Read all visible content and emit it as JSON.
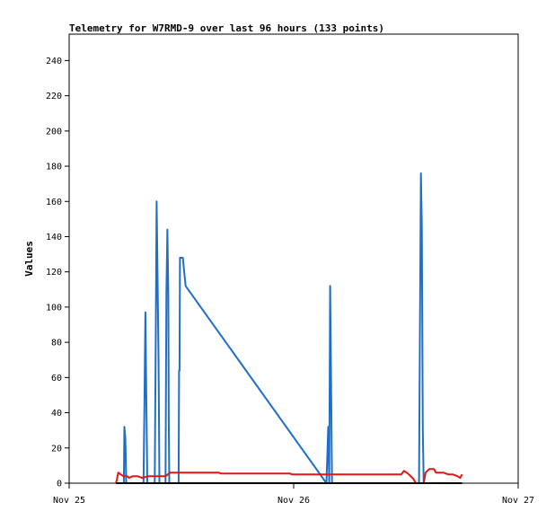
{
  "chart_data": {
    "type": "line",
    "title": "Telemetry for W7RMD-9 over last 96 hours (133 points)",
    "xlabel": "",
    "ylabel": "Values",
    "x_axis": {
      "min": 0,
      "max": 48,
      "units": "hours since Nov 25 00:00",
      "ticks": [
        {
          "value": 0,
          "label": "Nov 25"
        },
        {
          "value": 24,
          "label": "Nov 26"
        },
        {
          "value": 48,
          "label": "Nov 27"
        }
      ]
    },
    "y_axis": {
      "min": 0,
      "max": 255,
      "ticks": [
        0,
        20,
        40,
        60,
        80,
        100,
        120,
        140,
        160,
        180,
        200,
        220,
        240
      ]
    },
    "grid": false,
    "legend": "none",
    "series": [
      {
        "color": "#1f6fc8",
        "points": [
          [
            5.85,
            0
          ],
          [
            5.9,
            32
          ],
          [
            6.0,
            26
          ],
          [
            6.05,
            16
          ],
          [
            6.1,
            0
          ],
          [
            7.95,
            0
          ],
          [
            8.05,
            48
          ],
          [
            8.15,
            97
          ],
          [
            8.2,
            72
          ],
          [
            8.3,
            24
          ],
          [
            8.35,
            0
          ],
          [
            9.15,
            0
          ],
          [
            9.25,
            80
          ],
          [
            9.35,
            160
          ],
          [
            9.45,
            120
          ],
          [
            9.55,
            72
          ],
          [
            9.6,
            40
          ],
          [
            9.65,
            0
          ],
          [
            10.3,
            0
          ],
          [
            10.4,
            108
          ],
          [
            10.5,
            144
          ],
          [
            10.6,
            108
          ],
          [
            10.65,
            36
          ],
          [
            10.7,
            0
          ],
          [
            11.7,
            0
          ],
          [
            11.75,
            64
          ],
          [
            11.8,
            64
          ],
          [
            11.85,
            128
          ],
          [
            12.15,
            128
          ],
          [
            12.3,
            120
          ],
          [
            12.45,
            112
          ],
          [
            27.5,
            0
          ],
          [
            27.6,
            16
          ],
          [
            27.7,
            32
          ],
          [
            27.8,
            0
          ],
          [
            27.85,
            56
          ],
          [
            27.9,
            112
          ],
          [
            28.0,
            56
          ],
          [
            28.1,
            0
          ],
          [
            37.4,
            0
          ],
          [
            37.5,
            88
          ],
          [
            37.6,
            176
          ],
          [
            37.7,
            146
          ],
          [
            37.8,
            30
          ],
          [
            37.9,
            0
          ]
        ]
      },
      {
        "color": "#e61414",
        "points": [
          [
            5.0,
            0
          ],
          [
            5.1,
            2
          ],
          [
            5.25,
            6
          ],
          [
            5.5,
            5
          ],
          [
            5.8,
            4
          ],
          [
            6.2,
            4
          ],
          [
            6.4,
            3
          ],
          [
            6.8,
            4
          ],
          [
            7.3,
            4
          ],
          [
            7.8,
            3
          ],
          [
            8.5,
            4
          ],
          [
            10.3,
            4
          ],
          [
            10.8,
            6
          ],
          [
            16.0,
            6
          ],
          [
            16.2,
            5.5
          ],
          [
            23.6,
            5.5
          ],
          [
            23.8,
            5
          ],
          [
            35.5,
            5
          ],
          [
            35.8,
            7
          ],
          [
            36.2,
            5.5
          ],
          [
            36.8,
            2.5
          ],
          [
            37.0,
            0.5
          ],
          [
            37.2,
            0
          ],
          [
            37.9,
            0
          ],
          [
            38.1,
            6
          ],
          [
            38.5,
            8
          ],
          [
            39.0,
            8
          ],
          [
            39.2,
            6
          ],
          [
            40.0,
            6
          ],
          [
            40.5,
            5
          ],
          [
            41.0,
            5
          ],
          [
            41.5,
            4
          ],
          [
            41.8,
            3
          ],
          [
            42.0,
            5
          ]
        ]
      },
      {
        "color": "#000000",
        "points": [
          [
            5.0,
            0
          ],
          [
            42.0,
            0
          ]
        ]
      }
    ]
  }
}
